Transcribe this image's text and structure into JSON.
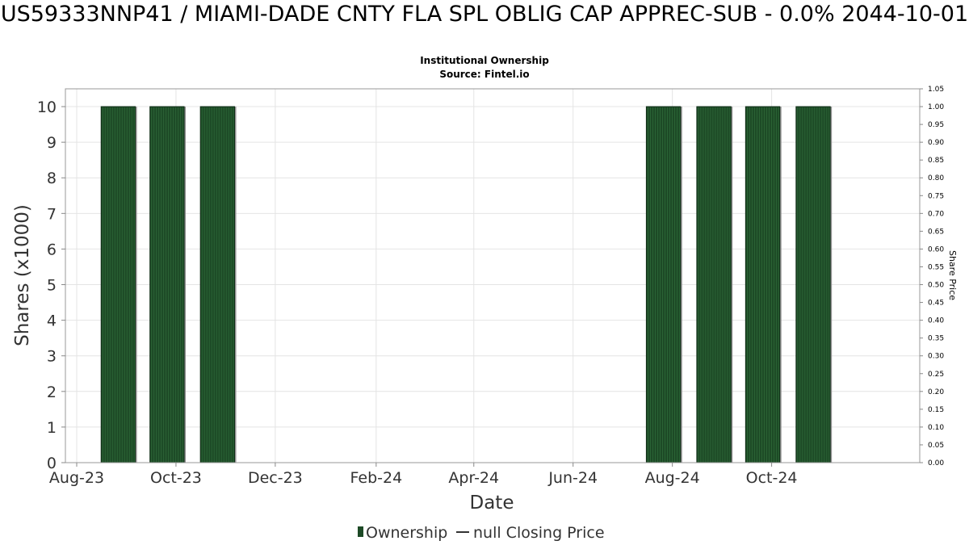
{
  "chart_data": {
    "type": "bar",
    "title": "US59333NNP41 / MIAMI-DADE CNTY FLA SPL OBLIG CAP APPREC-SUB - 0.0% 2044-10-01",
    "subtitle": "Institutional Ownership",
    "source": "Source: Fintel.io",
    "xlabel": "Date",
    "ylabel": "Shares (x1000)",
    "y2label": "Share Price",
    "ylim": [
      0,
      10.5
    ],
    "y2lim": [
      0,
      1.05
    ],
    "yticks": [
      "0",
      "1",
      "2",
      "3",
      "4",
      "5",
      "6",
      "7",
      "8",
      "9",
      "10"
    ],
    "y2ticks": [
      "0.00",
      "0.05",
      "0.10",
      "0.15",
      "0.20",
      "0.25",
      "0.30",
      "0.35",
      "0.40",
      "0.45",
      "0.50",
      "0.55",
      "0.60",
      "0.65",
      "0.70",
      "0.75",
      "0.80",
      "0.85",
      "0.90",
      "0.95",
      "1.00",
      "1.05"
    ],
    "xrange": [
      "2023-08-01",
      "2024-12-31"
    ],
    "xticks": [
      {
        "label": "Aug-23",
        "date": "2023-08-01"
      },
      {
        "label": "Oct-23",
        "date": "2023-10-01"
      },
      {
        "label": "Dec-23",
        "date": "2023-12-01"
      },
      {
        "label": "Feb-24",
        "date": "2024-02-01"
      },
      {
        "label": "Apr-24",
        "date": "2024-04-01"
      },
      {
        "label": "Jun-24",
        "date": "2024-06-01"
      },
      {
        "label": "Aug-24",
        "date": "2024-08-01"
      },
      {
        "label": "Oct-24",
        "date": "2024-10-01"
      }
    ],
    "series": [
      {
        "name": "Ownership",
        "color": "#1d4a26",
        "bars": [
          {
            "start": "2023-08-16",
            "end": "2023-09-06",
            "value": 10
          },
          {
            "start": "2023-09-15",
            "end": "2023-10-06",
            "value": 10
          },
          {
            "start": "2023-10-16",
            "end": "2023-11-06",
            "value": 10
          },
          {
            "start": "2024-07-16",
            "end": "2024-08-06",
            "value": 10
          },
          {
            "start": "2024-08-16",
            "end": "2024-09-06",
            "value": 10
          },
          {
            "start": "2024-09-15",
            "end": "2024-10-06",
            "value": 10
          },
          {
            "start": "2024-10-16",
            "end": "2024-11-06",
            "value": 10
          }
        ]
      },
      {
        "name": "null Closing Price",
        "color": "#333333",
        "values": []
      }
    ],
    "grid": true,
    "legend_position": "bottom-center"
  }
}
